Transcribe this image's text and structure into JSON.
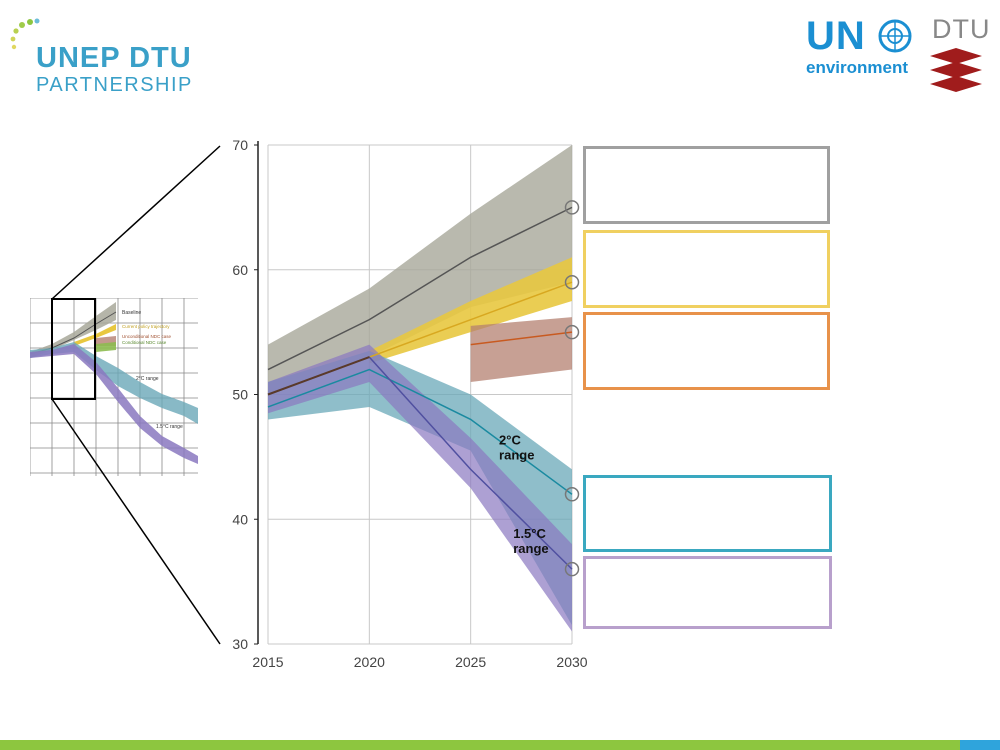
{
  "header": {
    "logo_left_line1": "UNEP DTU",
    "logo_left_line2": "PARTNERSHIP",
    "logo_un": "UN",
    "logo_un_sub": "environment",
    "logo_dtu": "DTU"
  },
  "thumbnail": {
    "labels": [
      "Baseline",
      "Current policy trajectory",
      "Unconditional NDC case",
      "Conditional NDC case",
      "2°C range",
      "1.5°C range"
    ]
  },
  "colors": {
    "baseline": "#a8a89a",
    "current_policy": "#e8c840",
    "ndc": "#b48070",
    "two_deg": "#6aa8b8",
    "one_five": "#8a78c0",
    "box_gray": "#a0a0a0",
    "box_yellow": "#f0d060",
    "box_orange": "#e8924a",
    "box_teal": "#3aa8c0",
    "box_purple": "#b8a0cc"
  },
  "chart_data": {
    "type": "area",
    "x": [
      2015,
      2020,
      2025,
      2030
    ],
    "xlim": [
      2015,
      2030
    ],
    "ylim": [
      30,
      70
    ],
    "yticks": [
      30,
      40,
      50,
      60,
      70
    ],
    "xticks": [
      2015,
      2020,
      2025,
      2030
    ],
    "grid": true,
    "series": [
      {
        "key": "baseline",
        "x": [
          2015,
          2020,
          2025,
          2030
        ],
        "median": [
          52,
          56,
          61,
          65
        ],
        "low": [
          50,
          53,
          57,
          59
        ],
        "high": [
          54,
          58.5,
          64.5,
          70
        ]
      },
      {
        "key": "current_policy",
        "x": [
          2020,
          2025,
          2030
        ],
        "median": [
          53,
          56,
          59
        ],
        "low": [
          52.5,
          55,
          57.5
        ],
        "high": [
          53.5,
          57.5,
          61
        ]
      },
      {
        "key": "ndc",
        "x": [
          2025,
          2030
        ],
        "median": [
          54,
          55
        ],
        "low": [
          51,
          52
        ],
        "high": [
          55.5,
          56.2
        ]
      },
      {
        "key": "two_deg",
        "x": [
          2015,
          2020,
          2025,
          2030
        ],
        "median": [
          49,
          52,
          48,
          42
        ],
        "low": [
          48,
          49,
          45.5,
          31.5
        ],
        "high": [
          51,
          53.5,
          50,
          44
        ]
      },
      {
        "key": "one_five",
        "x": [
          2015,
          2020,
          2025,
          2030
        ],
        "median": [
          50,
          53,
          44,
          36
        ],
        "low": [
          48.5,
          51,
          42.5,
          31
        ],
        "high": [
          51,
          54,
          46.5,
          38
        ]
      }
    ],
    "history": {
      "x": [
        2015,
        2020
      ],
      "y": [
        50,
        53
      ]
    },
    "markers": [
      {
        "x": 2030,
        "y": 65
      },
      {
        "x": 2030,
        "y": 59
      },
      {
        "x": 2030,
        "y": 55
      },
      {
        "x": 2030,
        "y": 42
      },
      {
        "x": 2030,
        "y": 36
      }
    ],
    "annotations": [
      {
        "text_line1": "2°C",
        "text_line2": "range",
        "x": 2026.4,
        "y": 46
      },
      {
        "text_line1": "1.5°C",
        "text_line2": "range",
        "x": 2027.1,
        "y": 38.5
      }
    ]
  }
}
